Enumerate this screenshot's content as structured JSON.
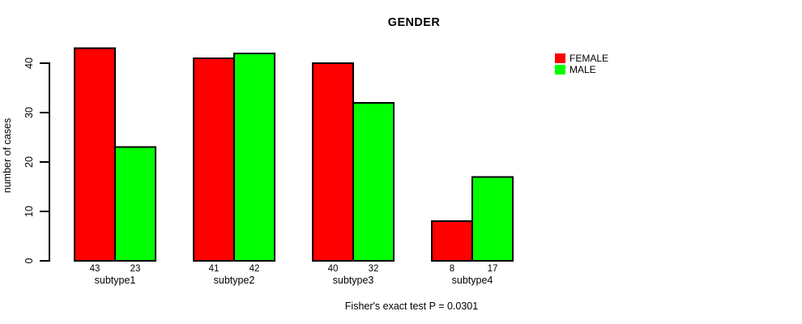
{
  "chart_data": {
    "type": "bar",
    "title": "GENDER",
    "xlabel": "",
    "ylabel": "number of cases",
    "annotation": "Fisher's exact test P = 0.0301",
    "categories": [
      "subtype1",
      "subtype2",
      "subtype3",
      "subtype4"
    ],
    "series": [
      {
        "name": "FEMALE",
        "color": "#ff0000",
        "values": [
          43,
          41,
          40,
          8
        ]
      },
      {
        "name": "MALE",
        "color": "#00ff00",
        "values": [
          23,
          42,
          32,
          17
        ]
      }
    ],
    "ylim": [
      0,
      40
    ],
    "yticks": [
      0,
      10,
      20,
      30,
      40
    ],
    "bar_value_labels": true,
    "grid": false,
    "legend_position": "right",
    "bar_border_color": "#000000",
    "axis_color": "#000000",
    "text_color": "#000000",
    "background_color": "#ffffff"
  }
}
